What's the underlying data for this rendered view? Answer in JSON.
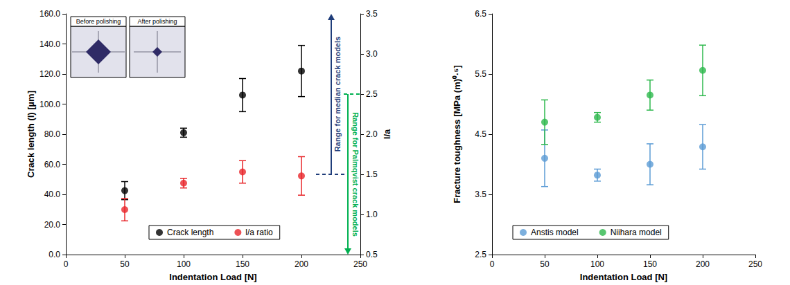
{
  "chart_data": [
    {
      "type": "scatter",
      "x_label": "Indentation Load [N]",
      "y_label": "Crack length (l) [µm]",
      "y2_label": "l/a",
      "x": [
        50,
        100,
        150,
        200
      ],
      "xlim": [
        0,
        250
      ],
      "xticks": [
        0,
        50,
        100,
        150,
        200,
        250
      ],
      "ylim": [
        0,
        160
      ],
      "yticks": [
        {
          "value": 0,
          "label": "0.0"
        },
        {
          "value": 20,
          "label": "20.0"
        },
        {
          "value": 40,
          "label": "40.0"
        },
        {
          "value": 60,
          "label": "60.0"
        },
        {
          "value": 80,
          "label": "80.0"
        },
        {
          "value": 100,
          "label": "100.0"
        },
        {
          "value": 120,
          "label": "120.0"
        },
        {
          "value": 140,
          "label": "140.0"
        },
        {
          "value": 160,
          "label": "160.0"
        }
      ],
      "y2lim": [
        0.5,
        3.5
      ],
      "y2ticks": [
        0.5,
        {
          "value": 1,
          "label": "1.0"
        },
        1.5,
        {
          "value": 2,
          "label": "2.0"
        },
        2.5,
        {
          "value": 3,
          "label": "3.0"
        },
        3.5
      ],
      "series": [
        {
          "name": "Crack length",
          "color": "#000000",
          "marker": "circle",
          "values": [
            42.5,
            81,
            106,
            122
          ],
          "errors": [
            6,
            3,
            11,
            17
          ]
        },
        {
          "name": "l/a ratio",
          "color": "#e8262a",
          "marker": "circle",
          "axis": "y2",
          "values": [
            1.06,
            1.39,
            1.53,
            1.48
          ],
          "errors": [
            0.14,
            0.06,
            0.14,
            0.24
          ]
        }
      ],
      "annotations": [
        {
          "text": "Range for median crack models",
          "color": "#1f3d7a",
          "y2_from": 1.5,
          "y2_to": 3.5
        },
        {
          "text": "Range for Palmqvist crack models",
          "color": "#00b050",
          "y2_from": 2.5,
          "y2_to": 0.5
        }
      ],
      "insets": [
        "Before polishing",
        "After polishing"
      ],
      "legend": "bottom",
      "grid": false
    },
    {
      "type": "scatter",
      "x_label": "Indentation Load [N]",
      "y_label": "Fracture toughness [MPa (m)⁰·⁵]",
      "x": [
        50,
        100,
        150,
        200
      ],
      "xlim": [
        0,
        250
      ],
      "xticks": [
        0,
        50,
        100,
        150,
        200,
        250
      ],
      "ylim": [
        2.5,
        6.5
      ],
      "yticks": [
        2.5,
        3.5,
        4.5,
        5.5,
        6.5
      ],
      "series": [
        {
          "name": "Anstis model",
          "color": "#5b9bd5",
          "marker": "circle",
          "values": [
            4.1,
            3.82,
            4.0,
            4.29
          ],
          "errors": [
            0.47,
            0.1,
            0.34,
            0.37
          ]
        },
        {
          "name": "Niihara model",
          "color": "#2db84c",
          "marker": "circle",
          "values": [
            4.7,
            4.78,
            5.15,
            5.56
          ],
          "errors": [
            0.37,
            0.08,
            0.25,
            0.42
          ]
        }
      ],
      "legend": "bottom",
      "grid": false
    }
  ]
}
